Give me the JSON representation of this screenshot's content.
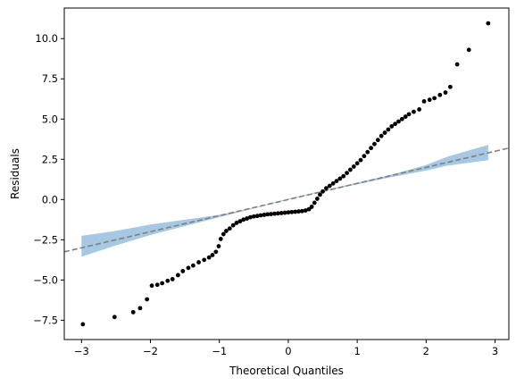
{
  "chart_data": {
    "type": "scatter",
    "title": "",
    "xlabel": "Theoretical Quantiles",
    "ylabel": "Residuals",
    "xlim": [
      -3.25,
      3.2
    ],
    "ylim": [
      -8.7,
      11.9
    ],
    "grid": false,
    "x_ticks": [
      -3,
      -2,
      -1,
      0,
      1,
      2,
      3
    ],
    "x_tick_labels": [
      "−3",
      "−2",
      "−1",
      "0",
      "1",
      "2",
      "3"
    ],
    "y_ticks": [
      -7.5,
      -5.0,
      -2.5,
      0.0,
      2.5,
      5.0,
      7.5,
      10.0
    ],
    "y_tick_labels": [
      "−7.5",
      "−5.0",
      "−2.5",
      "0.0",
      "2.5",
      "5.0",
      "7.5",
      "10.0"
    ],
    "reference_line": {
      "style": "dashed",
      "color": "#808080",
      "slope": 1.0,
      "intercept": 0.0
    },
    "confidence_band": {
      "color": "#a6c8e3",
      "x": [
        -3.0,
        -2.5,
        -2.0,
        -1.5,
        -1.0,
        -0.5,
        0.0,
        0.5,
        1.0,
        1.5,
        2.0,
        2.3,
        2.9
      ],
      "lower": [
        -3.55,
        -2.85,
        -2.2,
        -1.65,
        -1.1,
        -0.55,
        0.0,
        0.5,
        0.95,
        1.4,
        1.8,
        2.1,
        2.45
      ],
      "upper": [
        -2.25,
        -1.95,
        -1.55,
        -1.25,
        -0.95,
        -0.5,
        0.05,
        0.55,
        1.05,
        1.55,
        2.15,
        2.65,
        3.4
      ]
    },
    "series": [
      {
        "color": "#000000",
        "points": [
          [
            -2.98,
            -7.75
          ],
          [
            -2.52,
            -7.3
          ],
          [
            -2.25,
            -7.0
          ],
          [
            -2.15,
            -6.75
          ],
          [
            -2.05,
            -6.2
          ],
          [
            -1.98,
            -5.35
          ],
          [
            -1.9,
            -5.3
          ],
          [
            -1.83,
            -5.2
          ],
          [
            -1.75,
            -5.05
          ],
          [
            -1.68,
            -4.95
          ],
          [
            -1.6,
            -4.7
          ],
          [
            -1.53,
            -4.45
          ],
          [
            -1.45,
            -4.25
          ],
          [
            -1.38,
            -4.1
          ],
          [
            -1.3,
            -3.9
          ],
          [
            -1.22,
            -3.75
          ],
          [
            -1.15,
            -3.6
          ],
          [
            -1.1,
            -3.45
          ],
          [
            -1.05,
            -3.25
          ],
          [
            -1.01,
            -2.9
          ],
          [
            -0.98,
            -2.45
          ],
          [
            -0.94,
            -2.15
          ],
          [
            -0.9,
            -1.95
          ],
          [
            -0.85,
            -1.8
          ],
          [
            -0.8,
            -1.6
          ],
          [
            -0.75,
            -1.45
          ],
          [
            -0.7,
            -1.35
          ],
          [
            -0.65,
            -1.25
          ],
          [
            -0.6,
            -1.18
          ],
          [
            -0.55,
            -1.1
          ],
          [
            -0.5,
            -1.05
          ],
          [
            -0.45,
            -1.02
          ],
          [
            -0.4,
            -0.98
          ],
          [
            -0.35,
            -0.95
          ],
          [
            -0.3,
            -0.92
          ],
          [
            -0.25,
            -0.9
          ],
          [
            -0.2,
            -0.88
          ],
          [
            -0.15,
            -0.86
          ],
          [
            -0.1,
            -0.84
          ],
          [
            -0.05,
            -0.82
          ],
          [
            0.0,
            -0.8
          ],
          [
            0.05,
            -0.78
          ],
          [
            0.1,
            -0.76
          ],
          [
            0.15,
            -0.74
          ],
          [
            0.2,
            -0.72
          ],
          [
            0.25,
            -0.68
          ],
          [
            0.3,
            -0.6
          ],
          [
            0.34,
            -0.45
          ],
          [
            0.38,
            -0.2
          ],
          [
            0.42,
            0.05
          ],
          [
            0.46,
            0.3
          ],
          [
            0.5,
            0.5
          ],
          [
            0.55,
            0.7
          ],
          [
            0.6,
            0.85
          ],
          [
            0.65,
            1.0
          ],
          [
            0.7,
            1.15
          ],
          [
            0.75,
            1.3
          ],
          [
            0.8,
            1.45
          ],
          [
            0.85,
            1.65
          ],
          [
            0.9,
            1.85
          ],
          [
            0.95,
            2.05
          ],
          [
            1.0,
            2.25
          ],
          [
            1.05,
            2.45
          ],
          [
            1.1,
            2.7
          ],
          [
            1.15,
            2.95
          ],
          [
            1.2,
            3.2
          ],
          [
            1.25,
            3.45
          ],
          [
            1.3,
            3.7
          ],
          [
            1.35,
            3.95
          ],
          [
            1.4,
            4.15
          ],
          [
            1.45,
            4.35
          ],
          [
            1.5,
            4.55
          ],
          [
            1.55,
            4.7
          ],
          [
            1.6,
            4.85
          ],
          [
            1.65,
            5.0
          ],
          [
            1.7,
            5.15
          ],
          [
            1.75,
            5.3
          ],
          [
            1.82,
            5.45
          ],
          [
            1.9,
            5.6
          ],
          [
            1.97,
            6.1
          ],
          [
            2.05,
            6.2
          ],
          [
            2.12,
            6.3
          ],
          [
            2.2,
            6.5
          ],
          [
            2.28,
            6.65
          ],
          [
            2.35,
            7.0
          ],
          [
            2.45,
            8.4
          ],
          [
            2.62,
            9.3
          ],
          [
            2.9,
            10.95
          ]
        ]
      }
    ]
  }
}
